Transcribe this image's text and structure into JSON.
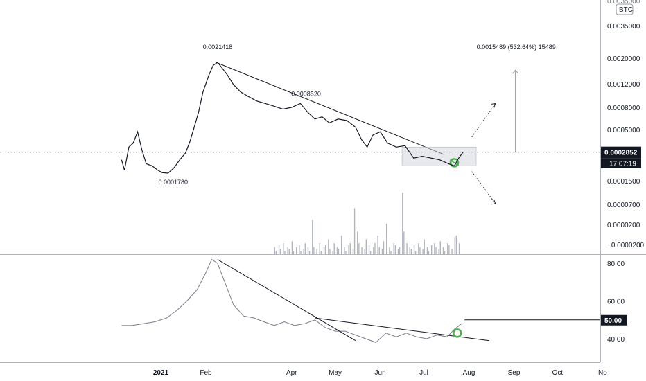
{
  "chart_data": [
    {
      "type": "line",
      "series": [
        {
          "x": [
            "2020-12-05",
            "2020-12-07",
            "2020-12-10",
            "2020-12-13",
            "2020-12-16",
            "2020-12-19",
            "2020-12-22",
            "2020-12-26",
            "2020-12-30",
            "2021-01-02",
            "2021-01-06",
            "2021-01-10",
            "2021-01-14",
            "2021-01-18",
            "2021-01-21",
            "2021-01-24",
            "2021-01-27",
            "2021-01-30",
            "2021-02-03",
            "2021-02-06",
            "2021-02-09",
            "2021-02-12",
            "2021-02-16",
            "2021-02-20",
            "2021-02-25",
            "2021-03-02",
            "2021-03-08",
            "2021-03-14",
            "2021-03-20",
            "2021-03-26",
            "2021-04-01",
            "2021-04-07",
            "2021-04-12",
            "2021-04-17",
            "2021-04-22",
            "2021-04-27",
            "2021-05-03",
            "2021-05-09",
            "2021-05-15",
            "2021-05-19",
            "2021-05-23",
            "2021-05-27",
            "2021-06-01",
            "2021-06-06",
            "2021-06-12",
            "2021-06-18",
            "2021-06-24",
            "2021-06-30",
            "2021-07-06",
            "2021-07-12",
            "2021-07-18",
            "2021-07-22",
            "2021-07-25",
            "2021-07-28"
          ],
          "values": [
            0.00024,
            0.00019,
            0.00032,
            0.00035,
            0.00045,
            0.0003,
            0.00022,
            0.00021,
            0.00019,
            0.00018,
            0.000178,
            0.0002,
            0.00024,
            0.00028,
            0.00036,
            0.0005,
            0.0007,
            0.0011,
            0.0016,
            0.002,
            0.0021418,
            0.0019,
            0.0016,
            0.0013,
            0.0011,
            0.001,
            0.0009,
            0.00085,
            0.0008,
            0.00075,
            0.00078,
            0.000852,
            0.0007,
            0.0006,
            0.00063,
            0.00055,
            0.0006,
            0.00058,
            0.0005,
            0.00038,
            0.00032,
            0.00042,
            0.00045,
            0.00035,
            0.00032,
            0.00033,
            0.00025,
            0.00026,
            0.00025,
            0.00024,
            0.00022,
            0.00021,
            0.00025,
            0.0002852
          ]
        }
      ],
      "annotations": [
        "0.0021418",
        "0.0008520",
        "0.0001780",
        "0.0015489 (532.64%) 15489"
      ],
      "trendline": {
        "from": {
          "x": "2021-02-08",
          "y": 0.0021418
        },
        "to": {
          "x": "2021-07-15",
          "y": 0.00027
        }
      },
      "projection": {
        "target": 0.0018,
        "label": "0.0015489 (532.64%) 15489"
      },
      "current_price": {
        "value": "0.0002852",
        "countdown": "17:07:19"
      },
      "y_tick_labels": [
        "0.0035000",
        "0.0020000",
        "0.0012000",
        "0.0008000",
        "0.0005000",
        "0.0002852",
        "0.0001500",
        "0.0000700",
        "0.0000200",
        "−0.0000200"
      ],
      "yscale": "log",
      "currency_badge": "BTC",
      "volume": {
        "x_start": "2021-03-20",
        "values": [
          0.2,
          0.1,
          0.25,
          0.15,
          0.3,
          0.1,
          0.2,
          0.15,
          0.35,
          0.1,
          0.2,
          0.25,
          0.1,
          0.15,
          0.3,
          0.2,
          0.1,
          0.9,
          0.2,
          0.15,
          0.3,
          0.1,
          0.2,
          0.25,
          0.4,
          0.15,
          0.1,
          0.3,
          0.2,
          0.15,
          0.5,
          0.2,
          0.1,
          0.25,
          0.3,
          0.15,
          1.2,
          0.6,
          0.3,
          0.2,
          0.15,
          0.4,
          0.25,
          0.1,
          0.2,
          0.3,
          0.5,
          0.2,
          0.15,
          0.35,
          0.8,
          0.2,
          0.1,
          0.3,
          0.25,
          0.15,
          0.2,
          1.6,
          0.6,
          0.3,
          0.2,
          0.15,
          0.25,
          0.1,
          0.3,
          0.2,
          0.15,
          0.4,
          0.2,
          0.1,
          0.25,
          0.3,
          0.2,
          0.15,
          0.35,
          0.2,
          0.1,
          0.3,
          0.25,
          0.15,
          0.45,
          0.5,
          0.3
        ]
      }
    },
    {
      "type": "line",
      "series": [
        {
          "x": [
            "2020-12-05",
            "2020-12-12",
            "2020-12-20",
            "2020-12-28",
            "2021-01-05",
            "2021-01-12",
            "2021-01-19",
            "2021-01-26",
            "2021-02-01",
            "2021-02-05",
            "2021-02-09",
            "2021-02-14",
            "2021-02-20",
            "2021-02-27",
            "2021-03-06",
            "2021-03-13",
            "2021-03-20",
            "2021-03-27",
            "2021-04-03",
            "2021-04-10",
            "2021-04-17",
            "2021-04-24",
            "2021-05-01",
            "2021-05-08",
            "2021-05-15",
            "2021-05-22",
            "2021-05-29",
            "2021-06-05",
            "2021-06-12",
            "2021-06-19",
            "2021-06-26",
            "2021-07-03",
            "2021-07-10",
            "2021-07-17",
            "2021-07-22",
            "2021-07-27"
          ],
          "values": [
            47,
            47,
            48,
            49,
            51,
            55,
            60,
            66,
            75,
            82,
            80,
            70,
            58,
            52,
            51,
            49,
            47,
            49,
            47,
            48,
            50,
            46,
            44,
            44,
            42,
            40,
            38,
            43,
            41,
            43,
            41,
            40,
            42,
            41,
            45,
            48
          ]
        }
      ],
      "trendlines": [
        {
          "from": {
            "x": "2021-02-09",
            "y": 82
          },
          "to": {
            "x": "2021-05-15",
            "y": 39
          }
        },
        {
          "from": {
            "x": "2021-04-17",
            "y": 51
          },
          "to": {
            "x": "2021-08-15",
            "y": 39
          }
        }
      ],
      "level": {
        "value": "50.00"
      },
      "y_tick_labels": [
        "80.00",
        "60.00",
        "50.00",
        "40.00"
      ]
    }
  ],
  "x_axis_labels": [
    "2021",
    "Feb",
    "Apr",
    "May",
    "Jun",
    "Jul",
    "Aug",
    "Sep",
    "Oct",
    "No"
  ]
}
